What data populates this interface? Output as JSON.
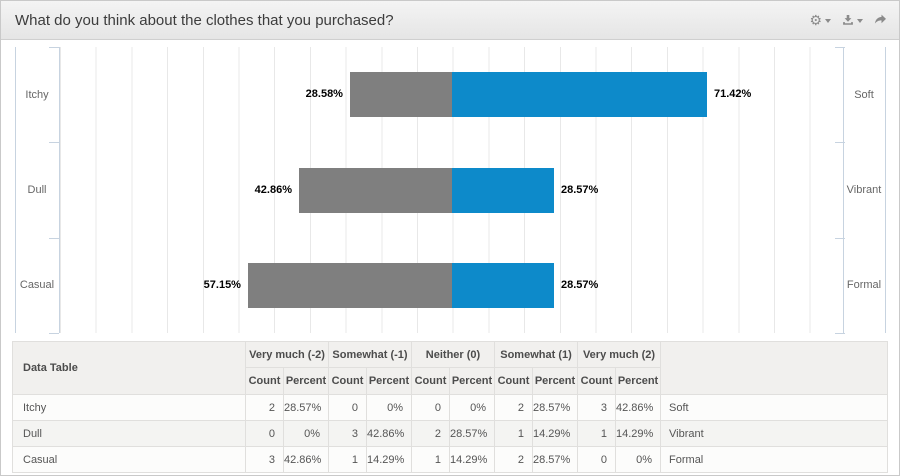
{
  "widget": {
    "title": "What do you think about the clothes that you purchased?"
  },
  "toolbar": {
    "buttons": [
      {
        "name": "settings",
        "icon": "gear-icon",
        "has_caret": true
      },
      {
        "name": "download",
        "icon": "download-icon",
        "has_caret": true
      },
      {
        "name": "share",
        "icon": "share-icon",
        "has_caret": false
      }
    ]
  },
  "chart_data": {
    "type": "bar",
    "variant": "diverging-horizontal",
    "title": "",
    "grid": true,
    "axis": {
      "min": -110,
      "max": 110,
      "grid_step_pct": 10,
      "zero_centered": true
    },
    "colors": {
      "negative": "#7f7f7f",
      "positive": "#0d8aca"
    },
    "categories": [
      {
        "left": "Itchy",
        "right": "Soft"
      },
      {
        "left": "Dull",
        "right": "Vibrant"
      },
      {
        "left": "Casual",
        "right": "Formal"
      }
    ],
    "series": [
      {
        "name": "negative",
        "values": [
          28.58,
          42.86,
          57.15
        ],
        "labels": [
          "28.58%",
          "42.86%",
          "57.15%"
        ]
      },
      {
        "name": "positive",
        "values": [
          71.42,
          28.57,
          28.57
        ],
        "labels": [
          "71.42%",
          "28.57%",
          "28.57%"
        ]
      }
    ]
  },
  "table": {
    "corner_label": "Data Table",
    "column_groups": [
      "Very much (-2)",
      "Somewhat (-1)",
      "Neither (0)",
      "Somewhat (1)",
      "Very much (2)"
    ],
    "sub_columns": [
      "Count",
      "Percent"
    ],
    "rows": [
      {
        "label": "Itchy",
        "right_label": "Soft",
        "cells": [
          "2",
          "28.57%",
          "0",
          "0%",
          "0",
          "0%",
          "2",
          "28.57%",
          "3",
          "42.86%"
        ]
      },
      {
        "label": "Dull",
        "right_label": "Vibrant",
        "cells": [
          "0",
          "0%",
          "3",
          "42.86%",
          "2",
          "28.57%",
          "1",
          "14.29%",
          "1",
          "14.29%"
        ]
      },
      {
        "label": "Casual",
        "right_label": "Formal",
        "cells": [
          "3",
          "42.86%",
          "1",
          "14.29%",
          "1",
          "14.29%",
          "2",
          "28.57%",
          "0",
          "0%"
        ]
      }
    ]
  }
}
